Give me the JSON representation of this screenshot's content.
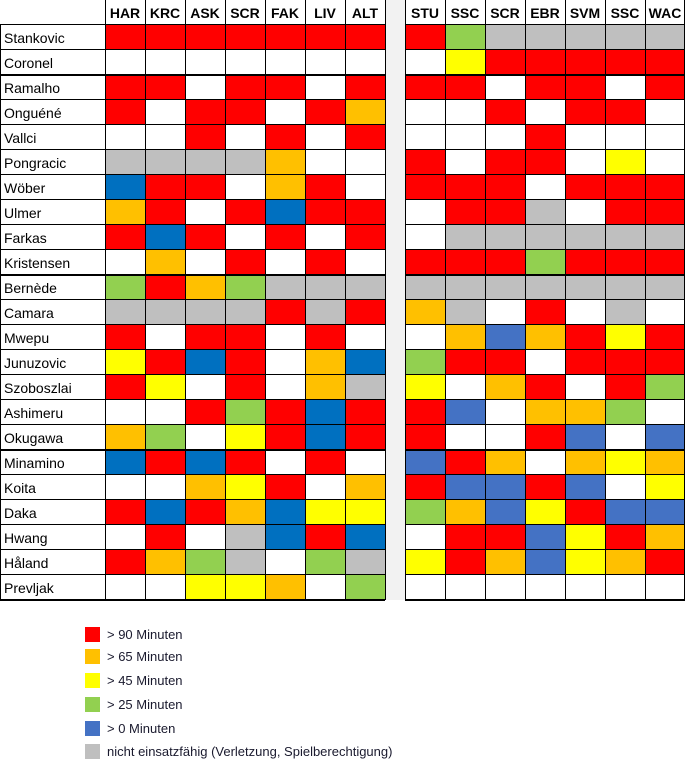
{
  "chart_data": {
    "type": "heatmap",
    "title": "",
    "columns": [
      "HAR",
      "KRC",
      "ASK",
      "SCR",
      "FAK",
      "LIV",
      "ALT",
      "STU",
      "SSC",
      "SCR",
      "EBR",
      "SVM",
      "SSC",
      "WAC"
    ],
    "colors": {
      "R": "#FF0000",
      "O": "#FFC000",
      "Y": "#FFFF00",
      "G": "#92D050",
      "B": "#0070C0",
      "b": "#4472C4",
      "X": "#BFBFBF",
      "W": "#FFFFFF"
    },
    "rows": [
      {
        "name": "Stankovic",
        "cells": "RRRRRRRRGXXXXX"
      },
      {
        "name": "Coronel",
        "cells": "WWWWWWWWYRRRRR"
      },
      {
        "name": "Ramalho",
        "cells": "RRWRRWRRRWRRWR"
      },
      {
        "name": "Onguéné",
        "cells": "RWRRWROWWRWRRW"
      },
      {
        "name": "Vallci",
        "cells": "WWRWRWRWWWRWWW"
      },
      {
        "name": "Pongracic",
        "cells": "XXXXOWWRWRRWYW"
      },
      {
        "name": "Wöber",
        "cells": "BRRWORWRRRWRRR"
      },
      {
        "name": "Ulmer",
        "cells": "ORWRBRRWRRXWRR"
      },
      {
        "name": "Farkas",
        "cells": "RBRWRWRWXXXXXX"
      },
      {
        "name": "Kristensen",
        "cells": "WOWRWRWRRRGRRR"
      },
      {
        "name": "Bernède",
        "cells": "GROGXXXXXXXXXX"
      },
      {
        "name": "Camara",
        "cells": "XXXXRXROXWRWXW"
      },
      {
        "name": "Mwepu",
        "cells": "RWRRWRWWObORYR"
      },
      {
        "name": "Junuzovic",
        "cells": "YRBRWOBGRRWRRR"
      },
      {
        "name": "Szoboszlai",
        "cells": "RYWRWOXYWORWRG"
      },
      {
        "name": "Ashimeru",
        "cells": "WWRGRBRRbWOOGW"
      },
      {
        "name": "Okugawa",
        "cells": "OGWYRBRRWWRbWb"
      },
      {
        "name": "Minamino",
        "cells": "BRBRWRWbROWOYO"
      },
      {
        "name": "Koita",
        "cells": "WWOYRWORbbRbWY"
      },
      {
        "name": "Daka",
        "cells": "RBROBYYGObYRbb"
      },
      {
        "name": "Hwang",
        "cells": "WRWXBRBWRRbYRO"
      },
      {
        "name": "Håland",
        "cells": "ROGXWGXYRObYOR"
      },
      {
        "name": "Prevljak",
        "cells": "WWYYOWGWWWWWWW"
      }
    ],
    "legend": [
      {
        "code": "R",
        "label": "> 90 Minuten"
      },
      {
        "code": "O",
        "label": "> 65 Minuten"
      },
      {
        "code": "Y",
        "label": "> 45 Minuten"
      },
      {
        "code": "G",
        "label": "> 25 Minuten"
      },
      {
        "code": "b",
        "label": "> 0 Minuten"
      },
      {
        "code": "X",
        "label": "nicht einsatzfähig (Verletzung, Spielberechtigung)"
      }
    ]
  }
}
